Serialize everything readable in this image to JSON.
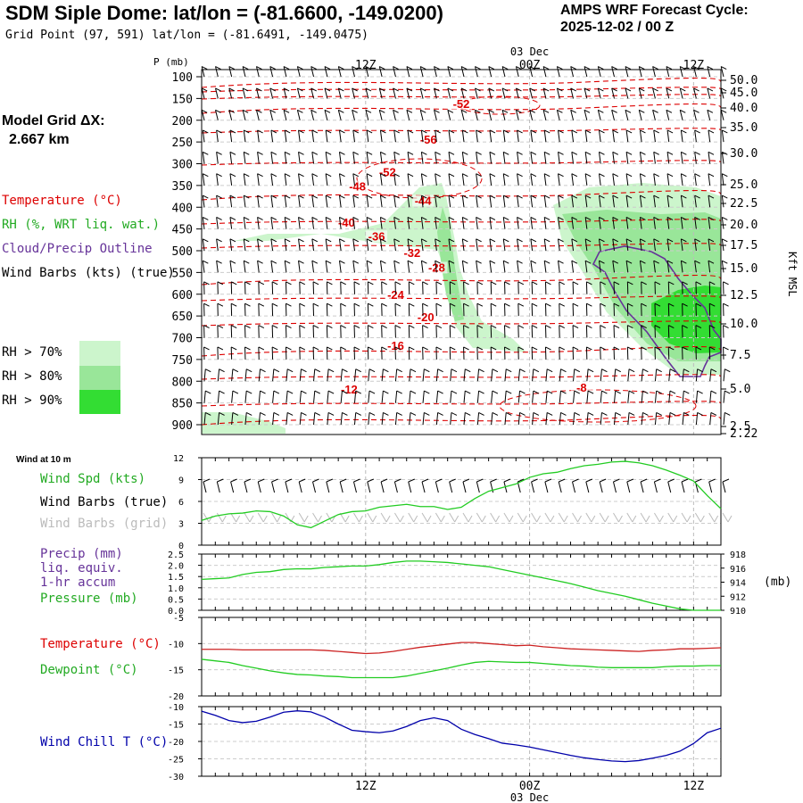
{
  "header": {
    "title": "SDM Siple Dome:  lat/lon = (-81.6600, -149.0200)",
    "grid_point": "Grid Point (97, 591) lat/lon = (-81.6491, -149.0475)",
    "cycle_label": "AMPS WRF Forecast Cycle:",
    "cycle_value": "2025-12-02 / 00  Z"
  },
  "left": {
    "model_grid_label": "Model Grid ΔX:",
    "model_grid_value": "2.667 km",
    "legend_temperature": "Temperature (°C)",
    "legend_rh": "RH (%, WRT liq. wat.)",
    "legend_cloud": "Cloud/Precip Outline",
    "legend_wind": "Wind Barbs (kts) (true)",
    "rh70": "RH > 70%",
    "rh80": "RH > 80%",
    "rh90": "RH > 90%"
  },
  "colors": {
    "temperature": "#dd0000",
    "rh70": "#ccf5cc",
    "rh80": "#99e699",
    "rh90": "#33dd33",
    "cloud_outline": "#663399",
    "green_line": "#22cc22",
    "wind_chill": "#0000aa"
  },
  "time_axis": {
    "labels": [
      "12Z",
      "00Z",
      "12Z"
    ],
    "date_label": "03 Dec"
  },
  "chart_data": [
    {
      "type": "heatmap",
      "title": "",
      "ylabel": "P (mb)",
      "ylabel_right": "Kft MSL",
      "y_ticks": [
        "100",
        "150",
        "200",
        "250",
        "300",
        "350",
        "400",
        "450",
        "500",
        "550",
        "600",
        "650",
        "700",
        "750",
        "800",
        "850",
        "900"
      ],
      "y_right_ticks": [
        "50.0",
        "45.0",
        "40.0",
        "35.0",
        "30.0",
        "25.0",
        "22.5",
        "20.0",
        "17.5",
        "15.0",
        "12.5",
        "10.0",
        "7.5",
        "5.0",
        "2.5",
        "2.22"
      ],
      "temperature_labels": [
        {
          "value": "-52",
          "t": 19,
          "p": 168
        },
        {
          "value": "-56",
          "t": 16.6,
          "p": 250
        },
        {
          "value": "-52",
          "t": 13.6,
          "p": 325
        },
        {
          "value": "-48",
          "t": 11.4,
          "p": 357
        },
        {
          "value": "-44",
          "t": 16.2,
          "p": 390
        },
        {
          "value": "-40",
          "t": 10.6,
          "p": 440
        },
        {
          "value": "-36",
          "t": 12.8,
          "p": 472
        },
        {
          "value": "-32",
          "t": 15.4,
          "p": 510
        },
        {
          "value": "-28",
          "t": 17.2,
          "p": 544
        },
        {
          "value": "-24",
          "t": 14.2,
          "p": 607
        },
        {
          "value": "-20",
          "t": 16.4,
          "p": 658
        },
        {
          "value": "-16",
          "t": 14.2,
          "p": 724
        },
        {
          "value": "-12",
          "t": 10.8,
          "p": 824
        },
        {
          "value": "-8",
          "t": 27.8,
          "p": 820
        }
      ]
    },
    {
      "type": "line",
      "caption": "Wind at 10 m",
      "legend": [
        "Wind Spd (kts)",
        "Wind Barbs (true)",
        "Wind Barbs (grid)"
      ],
      "y_ticks": [
        "12",
        "9",
        "6",
        "3",
        "0"
      ],
      "ylim": [
        0,
        12
      ],
      "x_hours": [
        0,
        1,
        2,
        3,
        4,
        5,
        6,
        7,
        8,
        9,
        10,
        11,
        12,
        13,
        14,
        15,
        16,
        17,
        18,
        19,
        20,
        21,
        22,
        23,
        24,
        25,
        26,
        27,
        28,
        29,
        30,
        31,
        32,
        33,
        34,
        35,
        36,
        37,
        38
      ],
      "series": [
        {
          "name": "Wind Spd (kts)",
          "values": [
            3.4,
            4.0,
            4.3,
            4.4,
            4.7,
            4.6,
            4.0,
            2.8,
            2.4,
            3.3,
            4.2,
            4.6,
            4.7,
            5.2,
            5.4,
            5.6,
            5.3,
            5.3,
            4.9,
            5.2,
            6.4,
            7.4,
            7.9,
            8.4,
            9.3,
            9.8,
            10.0,
            10.5,
            10.9,
            11.1,
            11.4,
            11.5,
            11.3,
            10.9,
            10.3,
            9.6,
            8.8,
            6.8,
            5.0
          ]
        }
      ]
    },
    {
      "type": "line",
      "legend": [
        "Precip (mm)",
        "liq. equiv.",
        "1-hr accum",
        "Pressure (mb)"
      ],
      "y_ticks": [
        "2.5",
        "2.0",
        "1.5",
        "1.0",
        "0.5",
        "0.0"
      ],
      "y_right_ticks": [
        "918",
        "916",
        "914",
        "912",
        "910"
      ],
      "y_right_unit": "(mb)",
      "ylim": [
        0,
        2.5
      ],
      "ylim_right": [
        910,
        918
      ],
      "x_hours": [
        0,
        1,
        2,
        3,
        4,
        5,
        6,
        7,
        8,
        9,
        10,
        11,
        12,
        13,
        14,
        15,
        16,
        17,
        18,
        19,
        20,
        21,
        22,
        23,
        24,
        25,
        26,
        27,
        28,
        29,
        30,
        31,
        32,
        33,
        34,
        35,
        36,
        37,
        38
      ],
      "series": [
        {
          "name": "Pressure (mb)",
          "values": [
            914.4,
            914.5,
            914.6,
            915.1,
            915.4,
            915.5,
            915.8,
            915.9,
            915.9,
            916.1,
            916.2,
            916.3,
            916.3,
            916.5,
            916.8,
            917.0,
            917.0,
            916.9,
            916.8,
            916.6,
            916.4,
            916.2,
            915.8,
            915.4,
            915.0,
            914.6,
            914.2,
            913.8,
            913.3,
            912.8,
            912.4,
            912.0,
            911.5,
            911.0,
            910.6,
            910.2,
            910.0,
            910.0,
            910.0
          ]
        }
      ]
    },
    {
      "type": "line",
      "legend": [
        "Temperature (°C)",
        "Dewpoint (°C)"
      ],
      "y_ticks": [
        "-5",
        "-10",
        "-15",
        "-20"
      ],
      "ylim": [
        -20,
        -5
      ],
      "x_hours": [
        0,
        1,
        2,
        3,
        4,
        5,
        6,
        7,
        8,
        9,
        10,
        11,
        12,
        13,
        14,
        15,
        16,
        17,
        18,
        19,
        20,
        21,
        22,
        23,
        24,
        25,
        26,
        27,
        28,
        29,
        30,
        31,
        32,
        33,
        34,
        35,
        36,
        37,
        38
      ],
      "series": [
        {
          "name": "Temperature (°C)",
          "values": [
            -11.1,
            -11.1,
            -11.1,
            -11.2,
            -11.2,
            -11.2,
            -11.2,
            -11.2,
            -11.2,
            -11.3,
            -11.5,
            -11.7,
            -11.9,
            -11.8,
            -11.5,
            -11.1,
            -10.7,
            -10.4,
            -10.1,
            -9.8,
            -9.8,
            -10.0,
            -10.2,
            -10.4,
            -10.3,
            -10.6,
            -10.8,
            -11.0,
            -11.1,
            -11.2,
            -11.3,
            -11.4,
            -11.5,
            -11.3,
            -11.2,
            -11.0,
            -11.0,
            -10.9,
            -10.8
          ]
        },
        {
          "name": "Dewpoint (°C)",
          "values": [
            -13.0,
            -13.3,
            -13.6,
            -14.2,
            -14.7,
            -15.2,
            -15.6,
            -15.9,
            -16.0,
            -16.2,
            -16.3,
            -16.5,
            -16.5,
            -16.5,
            -16.5,
            -16.2,
            -15.7,
            -15.2,
            -14.7,
            -14.1,
            -13.6,
            -13.4,
            -13.5,
            -13.6,
            -13.6,
            -13.8,
            -14.0,
            -14.2,
            -14.3,
            -14.5,
            -14.6,
            -14.6,
            -14.6,
            -14.6,
            -14.4,
            -14.3,
            -14.3,
            -14.2,
            -14.2
          ]
        }
      ]
    },
    {
      "type": "line",
      "legend": [
        "Wind Chill T (°C)"
      ],
      "y_ticks": [
        "-10",
        "-15",
        "-20",
        "-25",
        "-30"
      ],
      "ylim": [
        -30,
        -10
      ],
      "x_hours": [
        0,
        1,
        2,
        3,
        4,
        5,
        6,
        7,
        8,
        9,
        10,
        11,
        12,
        13,
        14,
        15,
        16,
        17,
        18,
        19,
        20,
        21,
        22,
        23,
        24,
        25,
        26,
        27,
        28,
        29,
        30,
        31,
        32,
        33,
        34,
        35,
        36,
        37,
        38
      ],
      "series": [
        {
          "name": "Wind Chill T (°C)",
          "values": [
            -11.3,
            -12.5,
            -14.0,
            -14.6,
            -14.2,
            -13.0,
            -11.6,
            -11.2,
            -11.5,
            -13.0,
            -15.0,
            -16.8,
            -17.2,
            -17.5,
            -17.0,
            -15.7,
            -14.0,
            -13.2,
            -14.0,
            -16.5,
            -18.0,
            -19.2,
            -20.5,
            -21.0,
            -21.6,
            -22.4,
            -23.2,
            -24.0,
            -24.7,
            -25.2,
            -25.6,
            -25.8,
            -25.5,
            -24.8,
            -24.0,
            -22.8,
            -20.6,
            -17.5,
            -16.2
          ]
        }
      ]
    }
  ]
}
